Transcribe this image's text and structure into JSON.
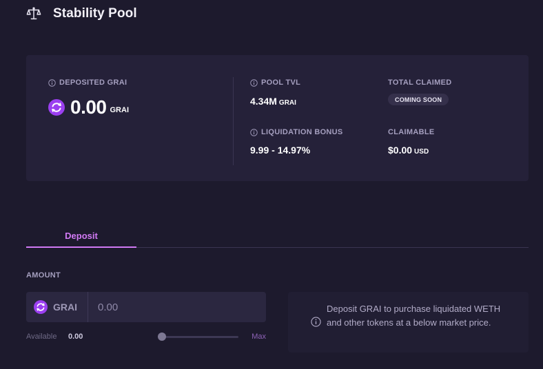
{
  "header": {
    "title": "Stability Pool",
    "icon": "scale-icon"
  },
  "stats": {
    "deposited": {
      "label": "DEPOSITED GRAI",
      "value": "0.00",
      "unit": "GRAI",
      "token_icon": "grai-token-icon"
    },
    "pool_tvl": {
      "label": "POOL TVL",
      "value": "4.34M",
      "unit": "GRAI"
    },
    "liquidation_bonus": {
      "label": "LIQUIDATION BONUS",
      "value": "9.99 - 14.97%"
    },
    "total_claimed": {
      "label": "TOTAL CLAIMED",
      "badge": "COMING SOON"
    },
    "claimable": {
      "label": "CLAIMABLE",
      "value": "$0.00",
      "unit": "USD"
    }
  },
  "tabs": [
    {
      "label": "Deposit",
      "active": true
    }
  ],
  "form": {
    "amount_label": "AMOUNT",
    "token": "GRAI",
    "input_placeholder": "0.00",
    "available_label": "Available",
    "available_value": "0.00",
    "slider_value": 0,
    "max_label": "Max"
  },
  "info": {
    "text": "Deposit GRAI to purchase liquidated WETH and other tokens at a below market price."
  },
  "colors": {
    "background": "#1d1a2d",
    "card": "#252139",
    "accent": "#d27af5",
    "token_purple": "#9b3ff0",
    "muted_label": "#a59fbf"
  }
}
